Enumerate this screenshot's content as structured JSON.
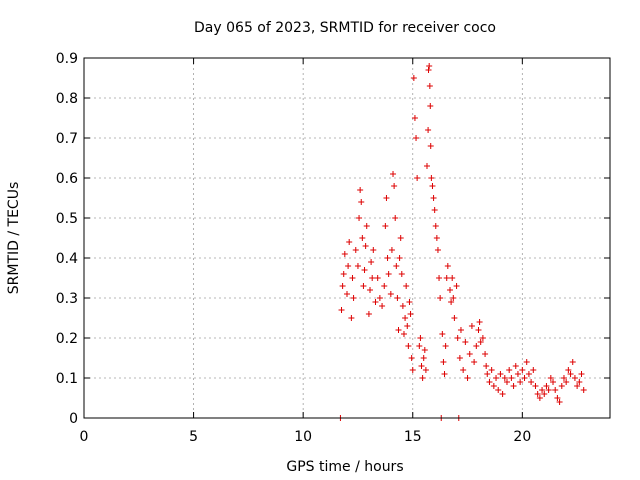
{
  "chart_data": {
    "type": "scatter",
    "title": "Day 065 of 2023, SRMTID for receiver coco",
    "xlabel": "GPS time / hours",
    "ylabel": "SRMTID / TECUs",
    "xlim": [
      0,
      24
    ],
    "ylim": [
      0,
      0.9
    ],
    "xticks": [
      0,
      5,
      10,
      15,
      20
    ],
    "xtick_labels": [
      "0",
      "5",
      "10",
      "15",
      "20"
    ],
    "yticks": [
      0,
      0.1,
      0.2,
      0.3,
      0.4,
      0.5,
      0.6,
      0.7,
      0.8,
      0.9
    ],
    "ytick_labels": [
      "0",
      "0.1",
      "0.2",
      "0.3",
      "0.4",
      "0.5",
      "0.6",
      "0.7",
      "0.8",
      "0.9"
    ],
    "grid": true,
    "marker": "+",
    "color": "#dd0000",
    "series": [
      {
        "name": "SRMTID",
        "points": [
          [
            11.7,
            0.0
          ],
          [
            11.75,
            0.27
          ],
          [
            11.8,
            0.33
          ],
          [
            11.85,
            0.36
          ],
          [
            11.9,
            0.41
          ],
          [
            12.0,
            0.31
          ],
          [
            12.05,
            0.38
          ],
          [
            12.1,
            0.44
          ],
          [
            12.2,
            0.25
          ],
          [
            12.25,
            0.35
          ],
          [
            12.3,
            0.3
          ],
          [
            12.4,
            0.42
          ],
          [
            12.5,
            0.38
          ],
          [
            12.55,
            0.5
          ],
          [
            12.6,
            0.57
          ],
          [
            12.65,
            0.54
          ],
          [
            12.7,
            0.45
          ],
          [
            12.75,
            0.33
          ],
          [
            12.8,
            0.37
          ],
          [
            12.85,
            0.43
          ],
          [
            12.9,
            0.48
          ],
          [
            13.0,
            0.26
          ],
          [
            13.05,
            0.32
          ],
          [
            13.1,
            0.39
          ],
          [
            13.15,
            0.35
          ],
          [
            13.2,
            0.42
          ],
          [
            13.3,
            0.29
          ],
          [
            13.4,
            0.35
          ],
          [
            13.5,
            0.3
          ],
          [
            13.6,
            0.28
          ],
          [
            13.7,
            0.33
          ],
          [
            13.75,
            0.48
          ],
          [
            13.8,
            0.55
          ],
          [
            13.85,
            0.4
          ],
          [
            13.9,
            0.36
          ],
          [
            14.0,
            0.31
          ],
          [
            14.05,
            0.42
          ],
          [
            14.1,
            0.61
          ],
          [
            14.15,
            0.58
          ],
          [
            14.2,
            0.5
          ],
          [
            14.25,
            0.38
          ],
          [
            14.3,
            0.3
          ],
          [
            14.35,
            0.22
          ],
          [
            14.4,
            0.4
          ],
          [
            14.45,
            0.45
          ],
          [
            14.5,
            0.36
          ],
          [
            14.55,
            0.28
          ],
          [
            14.6,
            0.21
          ],
          [
            14.65,
            0.25
          ],
          [
            14.7,
            0.33
          ],
          [
            14.75,
            0.23
          ],
          [
            14.8,
            0.18
          ],
          [
            14.85,
            0.29
          ],
          [
            14.9,
            0.26
          ],
          [
            14.95,
            0.15
          ],
          [
            15.0,
            0.12
          ],
          [
            15.05,
            0.85
          ],
          [
            15.1,
            0.75
          ],
          [
            15.15,
            0.7
          ],
          [
            15.2,
            0.6
          ],
          [
            15.3,
            0.18
          ],
          [
            15.35,
            0.2
          ],
          [
            15.4,
            0.13
          ],
          [
            15.45,
            0.1
          ],
          [
            15.5,
            0.15
          ],
          [
            15.55,
            0.17
          ],
          [
            15.6,
            0.12
          ],
          [
            15.65,
            0.63
          ],
          [
            15.7,
            0.72
          ],
          [
            15.72,
            0.87
          ],
          [
            15.75,
            0.88
          ],
          [
            15.78,
            0.83
          ],
          [
            15.8,
            0.78
          ],
          [
            15.82,
            0.68
          ],
          [
            15.85,
            0.6
          ],
          [
            15.9,
            0.58
          ],
          [
            15.95,
            0.55
          ],
          [
            16.0,
            0.52
          ],
          [
            16.05,
            0.48
          ],
          [
            16.1,
            0.45
          ],
          [
            16.15,
            0.42
          ],
          [
            16.2,
            0.35
          ],
          [
            16.25,
            0.3
          ],
          [
            16.3,
            0.0
          ],
          [
            16.35,
            0.21
          ],
          [
            16.4,
            0.14
          ],
          [
            16.45,
            0.11
          ],
          [
            16.5,
            0.18
          ],
          [
            16.55,
            0.35
          ],
          [
            16.6,
            0.38
          ],
          [
            16.7,
            0.32
          ],
          [
            16.75,
            0.29
          ],
          [
            16.8,
            0.35
          ],
          [
            16.85,
            0.3
          ],
          [
            16.9,
            0.25
          ],
          [
            17.0,
            0.33
          ],
          [
            17.05,
            0.2
          ],
          [
            17.1,
            0.0
          ],
          [
            17.15,
            0.15
          ],
          [
            17.2,
            0.22
          ],
          [
            17.3,
            0.12
          ],
          [
            17.4,
            0.19
          ],
          [
            17.5,
            0.1
          ],
          [
            17.6,
            0.16
          ],
          [
            17.7,
            0.23
          ],
          [
            17.8,
            0.14
          ],
          [
            17.9,
            0.18
          ],
          [
            18.0,
            0.22
          ],
          [
            18.05,
            0.24
          ],
          [
            18.1,
            0.19
          ],
          [
            18.2,
            0.2
          ],
          [
            18.3,
            0.16
          ],
          [
            18.35,
            0.13
          ],
          [
            18.4,
            0.11
          ],
          [
            18.5,
            0.09
          ],
          [
            18.6,
            0.12
          ],
          [
            18.7,
            0.08
          ],
          [
            18.8,
            0.1
          ],
          [
            18.9,
            0.07
          ],
          [
            19.0,
            0.11
          ],
          [
            19.1,
            0.06
          ],
          [
            19.2,
            0.1
          ],
          [
            19.3,
            0.09
          ],
          [
            19.4,
            0.12
          ],
          [
            19.5,
            0.1
          ],
          [
            19.6,
            0.08
          ],
          [
            19.7,
            0.13
          ],
          [
            19.8,
            0.11
          ],
          [
            19.9,
            0.09
          ],
          [
            20.0,
            0.12
          ],
          [
            20.1,
            0.1
          ],
          [
            20.2,
            0.14
          ],
          [
            20.3,
            0.11
          ],
          [
            20.4,
            0.09
          ],
          [
            20.5,
            0.12
          ],
          [
            20.6,
            0.08
          ],
          [
            20.7,
            0.06
          ],
          [
            20.8,
            0.05
          ],
          [
            20.9,
            0.07
          ],
          [
            21.0,
            0.06
          ],
          [
            21.1,
            0.08
          ],
          [
            21.2,
            0.07
          ],
          [
            21.3,
            0.1
          ],
          [
            21.4,
            0.09
          ],
          [
            21.5,
            0.07
          ],
          [
            21.6,
            0.05
          ],
          [
            21.7,
            0.04
          ],
          [
            21.8,
            0.08
          ],
          [
            21.9,
            0.1
          ],
          [
            22.0,
            0.09
          ],
          [
            22.1,
            0.12
          ],
          [
            22.2,
            0.11
          ],
          [
            22.3,
            0.14
          ],
          [
            22.4,
            0.1
          ],
          [
            22.5,
            0.08
          ],
          [
            22.6,
            0.09
          ],
          [
            22.7,
            0.11
          ],
          [
            22.8,
            0.07
          ]
        ]
      }
    ]
  }
}
